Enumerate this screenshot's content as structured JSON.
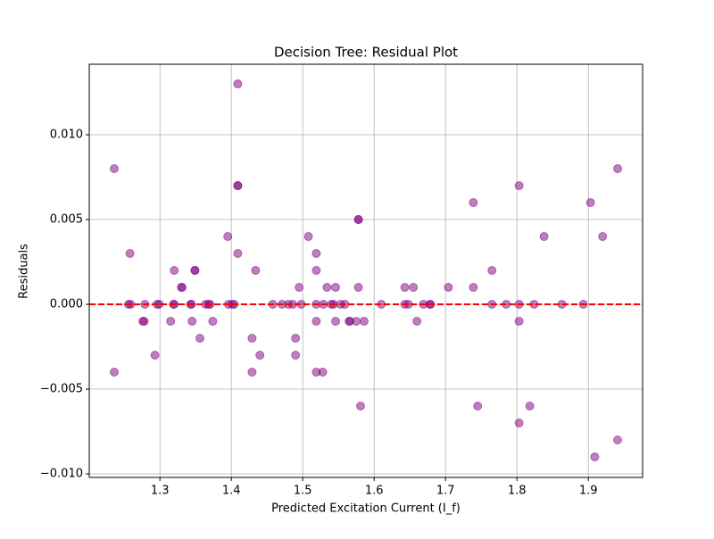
{
  "chart_data": {
    "type": "scatter",
    "title": "Decision Tree: Residual Plot",
    "x_label": "Predicted Excitation Current (I_f)",
    "y_label": "Residuals",
    "color": "#800080",
    "grid": true,
    "reference_line": {
      "y": 0,
      "color": "#ff0000"
    },
    "xlim": [
      1.201,
      1.976
    ],
    "ylim": [
      -0.01021,
      0.01416
    ],
    "xticks": [
      1.3,
      1.4,
      1.5,
      1.6,
      1.7,
      1.8,
      1.9
    ],
    "yticks": [
      {
        "value": -0.01,
        "label": "−0.010"
      },
      {
        "value": -0.005,
        "label": "−0.005"
      },
      {
        "value": 0,
        "label": "0.000"
      },
      {
        "value": 0.005,
        "label": "0.005"
      },
      {
        "value": 0.01,
        "label": "0.010"
      }
    ],
    "x": [
      1.236,
      1.236,
      1.258,
      1.256,
      1.259,
      1.276,
      1.278,
      1.279,
      1.293,
      1.296,
      1.299,
      1.315,
      1.319,
      1.32,
      1.32,
      1.33,
      1.331,
      1.343,
      1.344,
      1.345,
      1.349,
      1.349,
      1.356,
      1.364,
      1.368,
      1.37,
      1.374,
      1.395,
      1.396,
      1.401,
      1.404,
      1.409,
      1.409,
      1.409,
      1.409,
      1.429,
      1.429,
      1.434,
      1.44,
      1.458,
      1.471,
      1.48,
      1.486,
      1.49,
      1.49,
      1.495,
      1.498,
      1.508,
      1.519,
      1.519,
      1.519,
      1.519,
      1.519,
      1.528,
      1.529,
      1.534,
      1.54,
      1.543,
      1.546,
      1.546,
      1.553,
      1.559,
      1.565,
      1.566,
      1.575,
      1.578,
      1.578,
      1.578,
      1.581,
      1.586,
      1.61,
      1.643,
      1.643,
      1.648,
      1.655,
      1.66,
      1.669,
      1.678,
      1.679,
      1.704,
      1.739,
      1.739,
      1.745,
      1.765,
      1.765,
      1.785,
      1.803,
      1.803,
      1.803,
      1.803,
      1.818,
      1.824,
      1.838,
      1.863,
      1.893,
      1.903,
      1.909,
      1.92,
      1.941,
      1.941
    ],
    "values": [
      0.008,
      -0.004,
      0.003,
      0,
      0,
      -0.001,
      -0.001,
      0,
      -0.003,
      0,
      0,
      -0.001,
      0,
      0,
      0.002,
      0.001,
      0.001,
      0,
      0,
      -0.001,
      0.002,
      0.002,
      -0.002,
      0,
      0,
      0,
      -0.001,
      0.004,
      0,
      0,
      0,
      0.013,
      0.007,
      0.007,
      0.003,
      -0.002,
      -0.004,
      0.002,
      -0.003,
      0,
      0,
      0,
      0,
      -0.002,
      -0.003,
      0.001,
      0,
      0.004,
      0.003,
      0.002,
      -0.001,
      0,
      -0.004,
      -0.004,
      0,
      0.001,
      0,
      0,
      0.001,
      -0.001,
      0,
      0,
      -0.001,
      -0.001,
      -0.001,
      0.001,
      0.005,
      0.005,
      -0.006,
      -0.001,
      0,
      0.001,
      0,
      0,
      0.001,
      -0.001,
      0,
      0,
      0,
      0.001,
      0.006,
      0.001,
      -0.006,
      0.002,
      0,
      0,
      0.007,
      0,
      -0.001,
      -0.007,
      -0.006,
      0,
      0.004,
      0,
      0,
      0.006,
      -0.009,
      0.004,
      0.008,
      -0.008
    ]
  }
}
